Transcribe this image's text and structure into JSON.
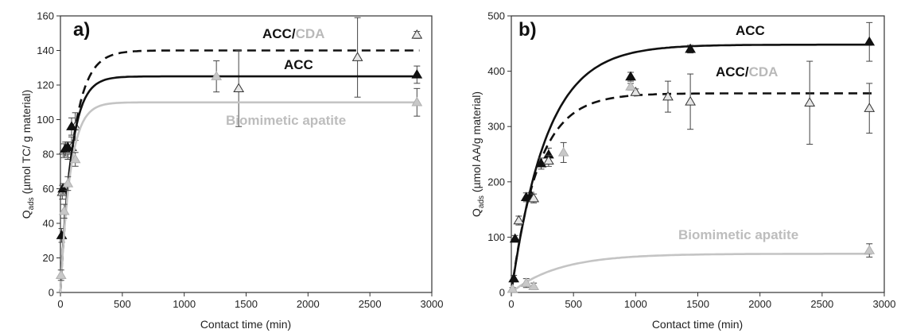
{
  "chart_data": [
    {
      "type": "scatter",
      "panel_label": "a)",
      "xlabel": "Contact time (min)",
      "ylabel_main": "Q",
      "ylabel_sub": "ads",
      "ylabel_rest": " (µmol TC/ g material)",
      "xlim": [
        0,
        3000
      ],
      "ylim": [
        0,
        160
      ],
      "xticks": [
        "0",
        "500",
        "1000",
        "1500",
        "2000",
        "2500",
        "3000"
      ],
      "yticks": [
        "0",
        "20",
        "40",
        "60",
        "80",
        "100",
        "120",
        "140",
        "160"
      ],
      "series": [
        {
          "name": "ACC/CDA",
          "label_parts": [
            "ACC/",
            "CDA"
          ],
          "label_colors": [
            "#111111",
            "#b9b9b9"
          ],
          "color": "#111111",
          "dash": true,
          "marker": "triangle-open",
          "curve": {
            "qmax": 140,
            "k": 0.0095
          },
          "points": [
            [
              15,
              58,
              4
            ],
            [
              30,
              82,
              4
            ],
            [
              60,
              82,
              5
            ],
            [
              90,
              84,
              6
            ],
            [
              120,
              96,
              8
            ],
            [
              1440,
              118,
              22
            ],
            [
              2400,
              136,
              23
            ],
            [
              2880,
              149,
              2
            ]
          ]
        },
        {
          "name": "ACC",
          "label_parts": [
            "ACC"
          ],
          "label_colors": [
            "#111111"
          ],
          "color": "#111111",
          "dash": false,
          "marker": "triangle-filled",
          "curve": {
            "qmax": 125,
            "k": 0.0115
          },
          "points": [
            [
              10,
              33,
              4
            ],
            [
              20,
              60,
              3
            ],
            [
              40,
              83,
              4
            ],
            [
              60,
              84,
              3
            ],
            [
              90,
              96,
              5
            ],
            [
              2880,
              126,
              5
            ]
          ]
        },
        {
          "name": "Biomimetic apatite",
          "label_parts": [
            "Biomimetic apatite"
          ],
          "label_colors": [
            "#bdbdbd"
          ],
          "color": "#c4c4c4",
          "dash": false,
          "marker": "triangle-gray",
          "curve": {
            "qmax": 110,
            "k": 0.0125
          },
          "points": [
            [
              5,
              10,
              3
            ],
            [
              30,
              47,
              4
            ],
            [
              60,
              63,
              4
            ],
            [
              120,
              77,
              4
            ],
            [
              1260,
              125,
              9
            ],
            [
              2880,
              110,
              8
            ]
          ]
        }
      ]
    },
    {
      "type": "scatter",
      "panel_label": "b)",
      "xlabel": "Contact time (min)",
      "ylabel_main": "Q",
      "ylabel_sub": "ads",
      "ylabel_rest": " (µmol AA/g material)",
      "xlim": [
        0,
        3000
      ],
      "ylim": [
        0,
        500
      ],
      "xticks": [
        "0",
        "500",
        "1000",
        "1500",
        "2000",
        "2500",
        "3000"
      ],
      "yticks": [
        "0",
        "100",
        "200",
        "300",
        "400",
        "500"
      ],
      "series": [
        {
          "name": "ACC",
          "label_parts": [
            "ACC"
          ],
          "label_colors": [
            "#111111"
          ],
          "color": "#111111",
          "dash": false,
          "marker": "triangle-filled",
          "curve": {
            "qmax": 448,
            "k": 0.0035
          },
          "points": [
            [
              20,
              25,
              6
            ],
            [
              30,
              97,
              6
            ],
            [
              120,
              172,
              8
            ],
            [
              160,
              175,
              6
            ],
            [
              240,
              233,
              10
            ],
            [
              300,
              249,
              12
            ],
            [
              960,
              390,
              8
            ],
            [
              1440,
              440,
              7
            ],
            [
              2880,
              453,
              35
            ]
          ]
        },
        {
          "name": "ACC/CDA",
          "label_parts": [
            "ACC/",
            "CDA"
          ],
          "label_colors": [
            "#111111",
            "#b9b9b9"
          ],
          "color": "#111111",
          "dash": true,
          "marker": "triangle-open",
          "curve": {
            "qmax": 360,
            "k": 0.0046
          },
          "points": [
            [
              60,
              130,
              8
            ],
            [
              180,
              170,
              8
            ],
            [
              300,
              238,
              10
            ],
            [
              1000,
              362,
              6
            ],
            [
              1260,
              354,
              28
            ],
            [
              1440,
              345,
              50
            ],
            [
              2400,
              343,
              75
            ],
            [
              2880,
              333,
              45
            ]
          ]
        },
        {
          "name": "Biomimetic apatite",
          "label_parts": [
            "Biomimetic apatite"
          ],
          "label_colors": [
            "#bdbdbd"
          ],
          "color": "#c4c4c4",
          "dash": false,
          "marker": "triangle-gray",
          "curve": {
            "qmax": 70,
            "k": 0.0026
          },
          "points": [
            [
              10,
              6,
              3
            ],
            [
              120,
              17,
              8
            ],
            [
              180,
              11,
              6
            ],
            [
              420,
              253,
              18
            ],
            [
              960,
              372,
              6
            ],
            [
              2880,
              76,
              12
            ]
          ]
        }
      ]
    }
  ]
}
